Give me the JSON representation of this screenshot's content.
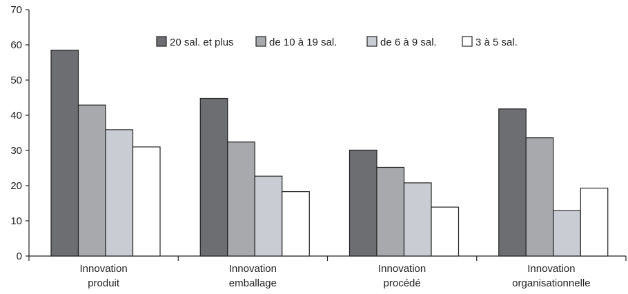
{
  "chart_data": {
    "type": "bar",
    "categories": [
      [
        "Innovation",
        "produit"
      ],
      [
        "Innovation",
        "emballage"
      ],
      [
        "Innovation",
        "procédé"
      ],
      [
        "Innovation",
        "organisationnelle"
      ]
    ],
    "series": [
      {
        "name": "20 sal. et plus",
        "color": "#6d6e71",
        "values": [
          58.5,
          44.8,
          30.1,
          41.8
        ]
      },
      {
        "name": "de 10 à 19 sal.",
        "color": "#a7a9ac",
        "values": [
          42.9,
          32.4,
          25.2,
          33.6
        ]
      },
      {
        "name": "de 6 à 9 sal.",
        "color": "#c9cdd3",
        "values": [
          35.9,
          22.7,
          20.8,
          12.9
        ]
      },
      {
        "name": "3 à 5 sal.",
        "color": "#ffffff",
        "values": [
          31.0,
          18.3,
          13.9,
          19.3
        ]
      }
    ],
    "yticks": [
      "0",
      "10",
      "20",
      "30",
      "40",
      "50",
      "60",
      "70"
    ],
    "ylim": [
      0,
      70
    ],
    "title": "",
    "xlabel": "",
    "ylabel": "",
    "legend_position": "top-center",
    "grid": false
  }
}
